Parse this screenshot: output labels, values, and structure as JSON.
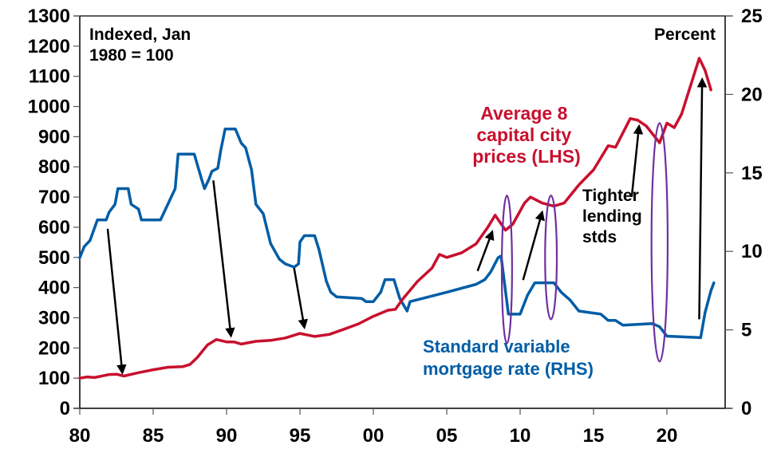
{
  "chart_data": {
    "type": "line",
    "title": "",
    "xlabel": "",
    "x_ticks": [
      "80",
      "85",
      "90",
      "95",
      "00",
      "05",
      "10",
      "15",
      "20"
    ],
    "x_tick_years": [
      1980,
      1985,
      1990,
      1995,
      2000,
      2005,
      2010,
      2015,
      2020
    ],
    "xlim": [
      1980,
      2024
    ],
    "y_left": {
      "label": "Indexed, Jan 1980 = 100",
      "label_lines": [
        "Indexed, Jan",
        "1980 = 100"
      ],
      "ylim": [
        0,
        1300
      ],
      "ticks": [
        "0",
        "100",
        "200",
        "300",
        "400",
        "500",
        "600",
        "700",
        "800",
        "900",
        "1000",
        "1100",
        "1200",
        "1300"
      ],
      "tick_values": [
        0,
        100,
        200,
        300,
        400,
        500,
        600,
        700,
        800,
        900,
        1000,
        1100,
        1200,
        1300
      ]
    },
    "y_right": {
      "label": "Percent",
      "ylim": [
        0,
        25
      ],
      "ticks": [
        "0",
        "5",
        "10",
        "15",
        "20",
        "25"
      ],
      "tick_values": [
        0,
        5,
        10,
        15,
        20,
        25
      ]
    },
    "grid": false,
    "series": [
      {
        "name": "Average 8 capital city prices (LHS)",
        "label_lines": [
          "Average 8",
          "capital city",
          "prices (LHS)"
        ],
        "axis": "left",
        "color": "#C8102E",
        "x": [
          1980,
          1980.5,
          1981,
          1982,
          1982.5,
          1983,
          1984,
          1985,
          1986,
          1987,
          1987.5,
          1988,
          1988.7,
          1989.3,
          1990,
          1990.5,
          1991,
          1992,
          1993,
          1994,
          1995,
          1996,
          1997,
          1998,
          1999,
          2000,
          2001,
          2001.5,
          2002,
          2003,
          2004,
          2004.5,
          2005,
          2006,
          2007,
          2007.8,
          2008.3,
          2009,
          2009.5,
          2010.3,
          2010.7,
          2011.5,
          2012.3,
          2013,
          2014,
          2015,
          2016,
          2016.5,
          2017.5,
          2018,
          2018.6,
          2019.5,
          2020,
          2020.5,
          2021,
          2022.2,
          2022.6,
          2023
        ],
        "values": [
          100,
          104,
          102,
          112,
          113,
          107,
          118,
          128,
          136,
          138,
          145,
          168,
          210,
          228,
          220,
          220,
          213,
          222,
          225,
          233,
          248,
          238,
          245,
          262,
          280,
          305,
          325,
          328,
          362,
          420,
          465,
          510,
          500,
          515,
          545,
          600,
          640,
          590,
          610,
          680,
          700,
          680,
          670,
          680,
          740,
          790,
          870,
          865,
          960,
          955,
          935,
          880,
          945,
          930,
          975,
          1160,
          1120,
          1055
        ]
      },
      {
        "name": "Standard variable mortgage rate (RHS)",
        "label_lines": [
          "Standard variable",
          "mortgage rate (RHS)"
        ],
        "axis": "right",
        "color": "#005DA6",
        "x": [
          1980,
          1980.3,
          1980.7,
          1981.2,
          1981.8,
          1982,
          1982.4,
          1982.6,
          1983.3,
          1983.5,
          1984,
          1984.2,
          1985.5,
          1985.8,
          1986.2,
          1986.5,
          1986.7,
          1987.8,
          1988.3,
          1988.5,
          1988.8,
          1989,
          1989.4,
          1989.6,
          1989.9,
          1990.6,
          1991,
          1991.3,
          1991.7,
          1992,
          1992.5,
          1993,
          1993.3,
          1993.6,
          1994,
          1994.6,
          1994.9,
          1995,
          1995.3,
          1996,
          1996.3,
          1996.8,
          1997.1,
          1997.5,
          1999.2,
          1999.5,
          2000,
          2000.5,
          2000.8,
          2001.4,
          2001.8,
          2002.3,
          2002.5,
          2005,
          2007,
          2007.6,
          2008,
          2008.5,
          2008.7,
          2009.2,
          2010,
          2010.5,
          2011,
          2012.3,
          2012.8,
          2013.4,
          2014,
          2015.5,
          2016,
          2016.5,
          2017,
          2019,
          2019.5,
          2020,
          2022.3,
          2022.6,
          2023,
          2023.2
        ],
        "values": [
          9.6,
          10.3,
          10.7,
          12,
          12,
          12.5,
          13,
          14,
          14,
          13,
          12.7,
          12,
          12,
          12.6,
          13.4,
          14,
          16.2,
          16.2,
          14.6,
          14,
          14.6,
          15.1,
          15.3,
          16.4,
          17.8,
          17.8,
          16.9,
          16.6,
          15.2,
          13,
          12.4,
          10.5,
          10,
          9.5,
          9.2,
          9.0,
          9.2,
          10.6,
          11,
          11,
          10.1,
          8.1,
          7.4,
          7.1,
          7.0,
          6.8,
          6.8,
          7.4,
          8.2,
          8.2,
          7.0,
          6.2,
          6.8,
          7.4,
          7.9,
          8.2,
          8.7,
          9.6,
          9.7,
          6.0,
          6.0,
          7.2,
          8.0,
          8.0,
          7.4,
          6.9,
          6.2,
          6.0,
          5.6,
          5.6,
          5.3,
          5.4,
          5.2,
          4.6,
          4.5,
          6.1,
          7.5,
          8.0
        ]
      }
    ],
    "annotations": {
      "text": [
        {
          "id": "tighter-lending",
          "lines": [
            "Tighter",
            "lending",
            "stds"
          ],
          "color": "#000000"
        }
      ],
      "arrows": [
        {
          "from": [
            1981.9,
            595
          ],
          "to": [
            1982.9,
            118
          ]
        },
        {
          "from": [
            1989.1,
            755
          ],
          "to": [
            1990.3,
            240
          ]
        },
        {
          "from": [
            1994.6,
            465
          ],
          "to": [
            1995.3,
            268
          ]
        },
        {
          "from": [
            2007.1,
            455
          ],
          "to": [
            2008.1,
            585
          ]
        },
        {
          "from": [
            2010.2,
            425
          ],
          "to": [
            2011.5,
            650
          ]
        },
        {
          "from": [
            2017.6,
            700
          ],
          "to": [
            2018.1,
            935
          ]
        },
        {
          "from": [
            2022.2,
            295
          ],
          "to": [
            2022.4,
            1090
          ]
        }
      ],
      "ellipses": [
        {
          "center_year": 2009.1,
          "center_value": 460,
          "half_width_years": 0.35,
          "half_height_value": 245
        },
        {
          "center_year": 2012.1,
          "center_value": 500,
          "half_width_years": 0.4,
          "half_height_value": 205
        },
        {
          "center_year": 2019.5,
          "center_value": 550,
          "half_width_years": 0.55,
          "half_height_value": 395
        }
      ],
      "ellipse_color": "#7030A0",
      "arrow_color": "#000000"
    }
  }
}
